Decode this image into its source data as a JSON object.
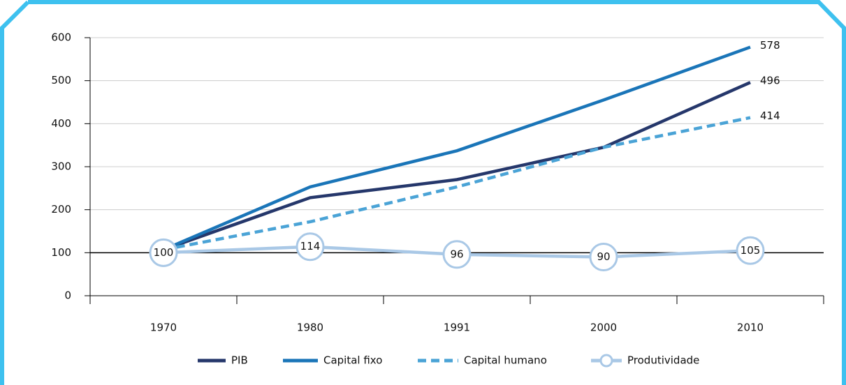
{
  "chart_data": {
    "type": "line",
    "categories": [
      "1970",
      "1980",
      "1991",
      "2000",
      "2010"
    ],
    "series": [
      {
        "name": "PIB",
        "color": "#25376b",
        "values": [
          107,
          228,
          270,
          345,
          496
        ]
      },
      {
        "name": "Capital fixo",
        "color": "#1a75b8",
        "values": [
          107,
          253,
          337,
          455,
          578
        ]
      },
      {
        "name": "Capital humano",
        "color": "#4aa3d6",
        "dashed": true,
        "values": [
          107,
          172,
          253,
          345,
          414
        ]
      },
      {
        "name": "Produtividade",
        "color": "#a9c8e6",
        "markers": true,
        "values": [
          100,
          114,
          96,
          90,
          105
        ]
      }
    ],
    "ylim": [
      0,
      600
    ],
    "yticks": [
      0,
      100,
      200,
      300,
      400,
      500,
      600
    ],
    "grid": true,
    "reference_line": 100,
    "legend": "bottom"
  }
}
